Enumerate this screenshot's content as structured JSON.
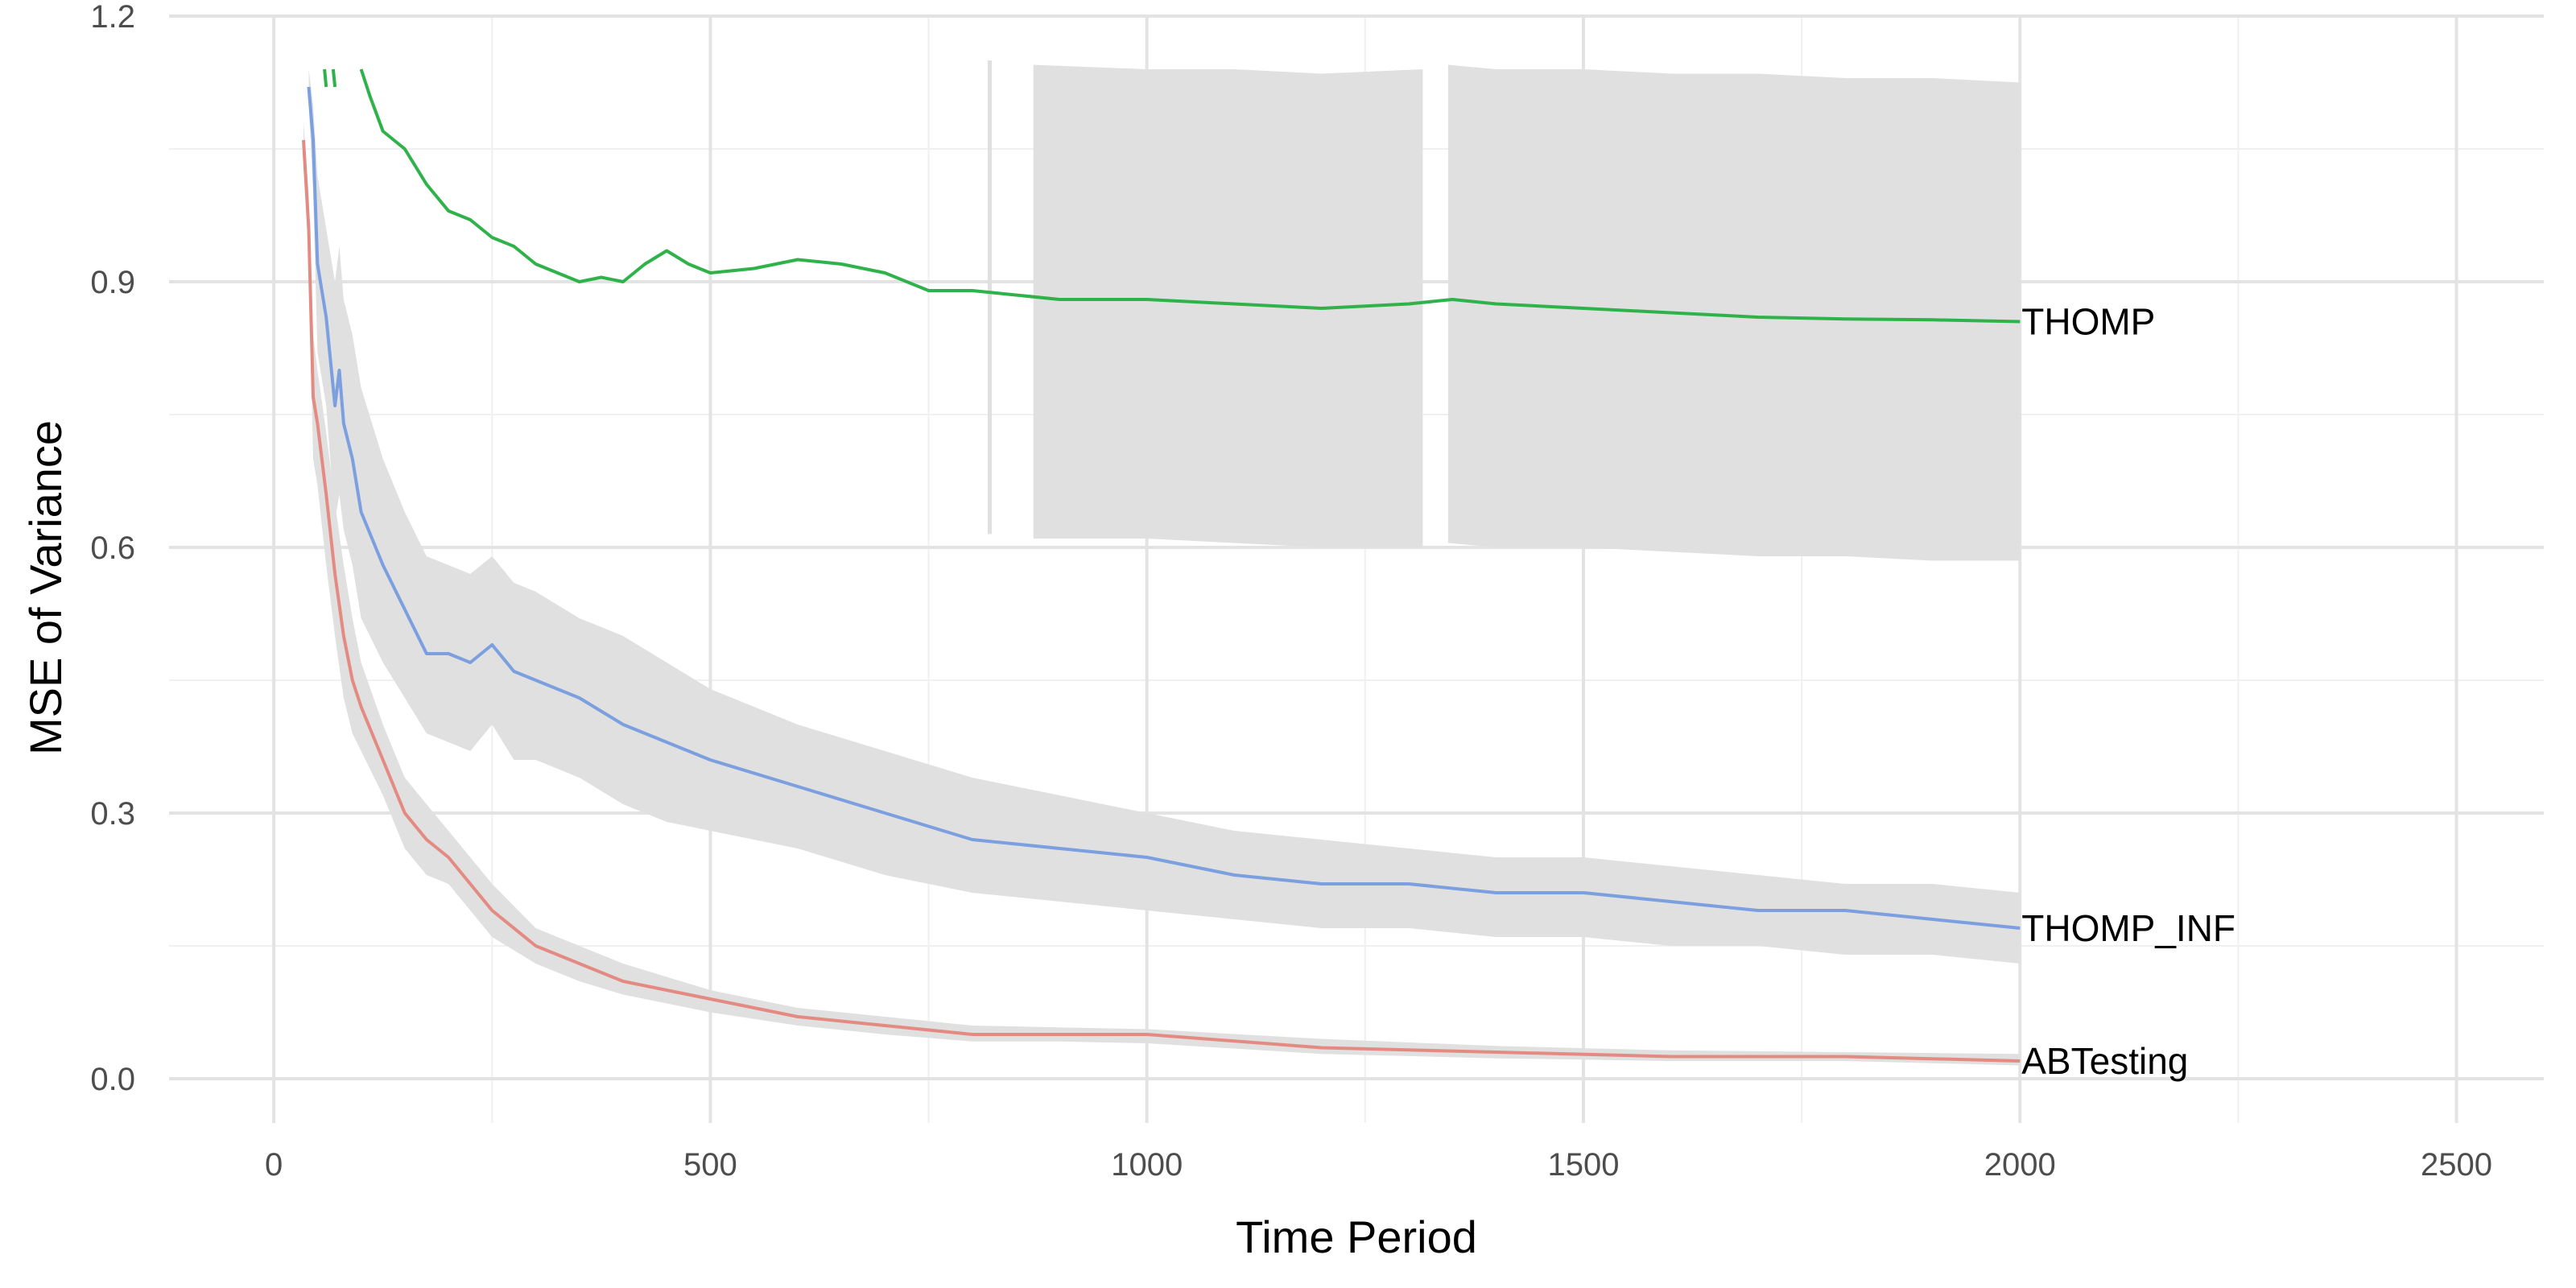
{
  "chart_data": {
    "type": "line",
    "title": "",
    "xlabel": "Time Period",
    "ylabel": "MSE of Variance",
    "xlim": [
      -120,
      2600
    ],
    "ylim": [
      -0.05,
      1.2
    ],
    "xticks": [
      0,
      500,
      1000,
      1500,
      2000,
      2500
    ],
    "xtick_labels": [
      "0",
      "500",
      "1000",
      "1500",
      "2000",
      "2500"
    ],
    "yticks": [
      0.0,
      0.3,
      0.6,
      0.9,
      1.2
    ],
    "ytick_labels": [
      "0.0",
      "0.3",
      "0.6",
      "0.9",
      "1.2"
    ],
    "grid": true,
    "legend": "none (labels at line ends)",
    "series": [
      {
        "name": "ABTesting",
        "color": "#e38b82",
        "x": [
          34,
          40,
          45,
          50,
          60,
          70,
          80,
          90,
          100,
          125,
          150,
          175,
          200,
          250,
          300,
          350,
          400,
          500,
          600,
          700,
          800,
          900,
          1000,
          1200,
          1400,
          1600,
          1800,
          2000
        ],
        "y": [
          1.06,
          0.96,
          0.77,
          0.74,
          0.66,
          0.57,
          0.5,
          0.45,
          0.42,
          0.36,
          0.3,
          0.27,
          0.25,
          0.19,
          0.15,
          0.13,
          0.11,
          0.09,
          0.07,
          0.06,
          0.05,
          0.05,
          0.05,
          0.035,
          0.03,
          0.025,
          0.025,
          0.02
        ],
        "band_upper": [
          1.08,
          1.0,
          0.84,
          0.8,
          0.73,
          0.65,
          0.58,
          0.52,
          0.47,
          0.4,
          0.34,
          0.31,
          0.28,
          0.22,
          0.17,
          0.15,
          0.13,
          0.1,
          0.08,
          0.07,
          0.06,
          0.058,
          0.056,
          0.045,
          0.037,
          0.032,
          0.03,
          0.028
        ],
        "band_lower": [
          1.04,
          0.92,
          0.7,
          0.67,
          0.58,
          0.5,
          0.43,
          0.39,
          0.37,
          0.32,
          0.26,
          0.23,
          0.22,
          0.16,
          0.13,
          0.11,
          0.095,
          0.075,
          0.06,
          0.05,
          0.042,
          0.042,
          0.04,
          0.028,
          0.023,
          0.02,
          0.02,
          0.015
        ],
        "end_label": "ABTesting"
      },
      {
        "name": "THOMP_INF",
        "color": "#7b9fdf",
        "x": [
          40,
          45,
          50,
          60,
          70,
          75,
          80,
          90,
          100,
          125,
          150,
          175,
          200,
          225,
          250,
          275,
          300,
          350,
          400,
          450,
          500,
          600,
          700,
          800,
          900,
          1000,
          1100,
          1200,
          1300,
          1400,
          1500,
          1600,
          1700,
          1800,
          1900,
          2000
        ],
        "y": [
          1.12,
          1.06,
          0.92,
          0.86,
          0.76,
          0.8,
          0.74,
          0.7,
          0.64,
          0.58,
          0.53,
          0.48,
          0.48,
          0.47,
          0.49,
          0.46,
          0.45,
          0.43,
          0.4,
          0.38,
          0.36,
          0.33,
          0.3,
          0.27,
          0.26,
          0.25,
          0.23,
          0.22,
          0.22,
          0.21,
          0.21,
          0.2,
          0.19,
          0.19,
          0.18,
          0.17
        ],
        "band_upper": [
          1.14,
          1.1,
          1.02,
          0.96,
          0.9,
          0.94,
          0.88,
          0.84,
          0.78,
          0.7,
          0.64,
          0.59,
          0.58,
          0.57,
          0.59,
          0.56,
          0.55,
          0.52,
          0.5,
          0.47,
          0.44,
          0.4,
          0.37,
          0.34,
          0.32,
          0.3,
          0.28,
          0.27,
          0.26,
          0.25,
          0.25,
          0.24,
          0.23,
          0.22,
          0.22,
          0.21
        ],
        "band_lower": [
          1.1,
          1.0,
          0.82,
          0.76,
          0.63,
          0.66,
          0.62,
          0.58,
          0.52,
          0.47,
          0.43,
          0.39,
          0.38,
          0.37,
          0.4,
          0.36,
          0.36,
          0.34,
          0.31,
          0.29,
          0.28,
          0.26,
          0.23,
          0.21,
          0.2,
          0.19,
          0.18,
          0.17,
          0.17,
          0.16,
          0.16,
          0.15,
          0.15,
          0.14,
          0.14,
          0.13
        ],
        "end_label": "THOMP_INF"
      },
      {
        "name": "THOMP",
        "color": "#2fb24a",
        "x": [
          100,
          110,
          125,
          150,
          175,
          200,
          225,
          250,
          275,
          300,
          325,
          350,
          375,
          400,
          425,
          450,
          475,
          500,
          550,
          600,
          650,
          700,
          750,
          800,
          850,
          900,
          1000,
          1100,
          1200,
          1300,
          1350,
          1400,
          1500,
          1600,
          1700,
          1800,
          1900,
          2000
        ],
        "y": [
          1.14,
          1.11,
          1.07,
          1.05,
          1.01,
          0.98,
          0.97,
          0.95,
          0.94,
          0.92,
          0.91,
          0.9,
          0.905,
          0.9,
          0.92,
          0.935,
          0.92,
          0.91,
          0.915,
          0.925,
          0.92,
          0.91,
          0.89,
          0.89,
          0.885,
          0.88,
          0.88,
          0.875,
          0.87,
          0.875,
          0.88,
          0.875,
          0.87,
          0.865,
          0.86,
          0.858,
          0.857,
          0.855
        ],
        "end_label": "THOMP"
      }
    ],
    "thomp_fragments": [
      {
        "x": [
          58,
          60
        ],
        "y": [
          1.14,
          1.12
        ]
      },
      {
        "x": [
          68,
          70
        ],
        "y": [
          1.14,
          1.12
        ]
      }
    ],
    "thomp_band": {
      "spike": {
        "x": 820,
        "lower": 0.615,
        "upper": 1.15
      },
      "segments": [
        {
          "x": [
            870,
            1000,
            1100,
            1200,
            1316
          ],
          "lower": [
            0.61,
            0.61,
            0.605,
            0.6,
            0.6
          ],
          "upper": [
            1.145,
            1.14,
            1.14,
            1.135,
            1.14
          ]
        },
        {
          "x": [
            1345,
            1400,
            1500,
            1600,
            1700,
            1800,
            1900,
            2000
          ],
          "lower": [
            0.605,
            0.6,
            0.6,
            0.595,
            0.59,
            0.59,
            0.585,
            0.585
          ],
          "upper": [
            1.145,
            1.14,
            1.14,
            1.135,
            1.135,
            1.13,
            1.13,
            1.125
          ]
        }
      ]
    }
  }
}
